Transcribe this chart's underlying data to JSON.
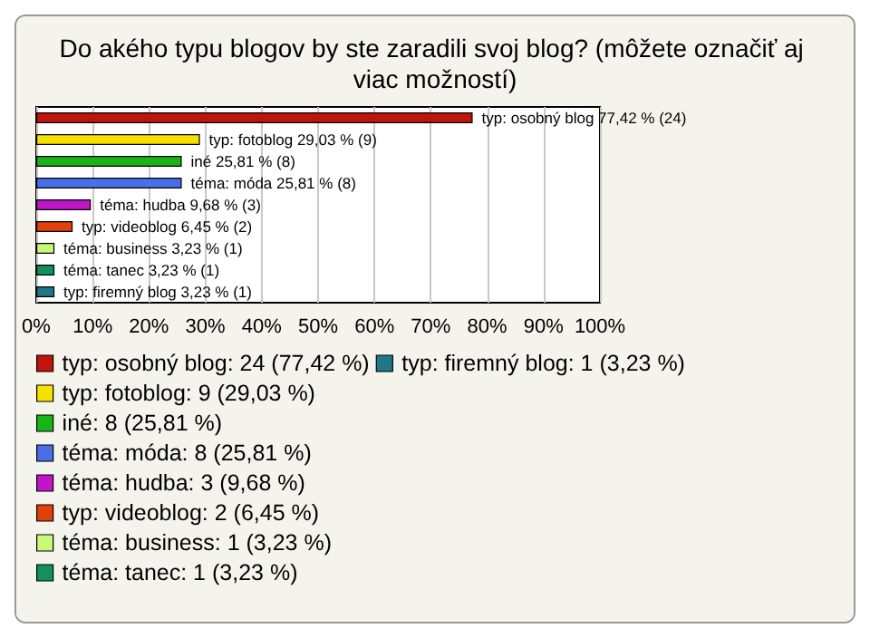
{
  "chart_data": {
    "type": "bar",
    "orientation": "horizontal",
    "stacked": true,
    "title": "Do akého typu blogov by ste zaradili svoj blog? (môžete označiť aj viac možností)",
    "categories": [
      null,
      null,
      null,
      null,
      null,
      null,
      null,
      null,
      null
    ],
    "series": [
      {
        "name": "typ: osobný blog: 24 (77,42 %)",
        "color": "#c0140c",
        "values": [
          77.42,
          null,
          null,
          null,
          null,
          null,
          null,
          null,
          null
        ],
        "value_labels": [
          "typ: osobný blog 77,42 % (24)",
          null,
          null,
          null,
          null,
          null,
          null,
          null,
          null
        ]
      },
      {
        "name": "typ: fotoblog: 9 (29,03 %)",
        "color": "#f5e000",
        "values": [
          null,
          29.03,
          null,
          null,
          null,
          null,
          null,
          null,
          null
        ],
        "value_labels": [
          null,
          "typ: fotoblog 29,03 % (9)",
          null,
          null,
          null,
          null,
          null,
          null,
          null
        ]
      },
      {
        "name": "iné: 8 (25,81 %)",
        "color": "#18b418",
        "values": [
          null,
          null,
          25.81,
          null,
          null,
          null,
          null,
          null,
          null
        ],
        "value_labels": [
          null,
          null,
          "iné 25,81 % (8)",
          null,
          null,
          null,
          null,
          null,
          null
        ]
      },
      {
        "name": "téma: móda: 8 (25,81 %)",
        "color": "#4a6ee8",
        "values": [
          null,
          null,
          null,
          25.81,
          null,
          null,
          null,
          null,
          null
        ],
        "value_labels": [
          null,
          null,
          null,
          "téma: móda 25,81 % (8)",
          null,
          null,
          null,
          null,
          null
        ]
      },
      {
        "name": "téma: hudba: 3 (9,68 %)",
        "color": "#c016c8",
        "values": [
          null,
          null,
          null,
          null,
          9.68,
          null,
          null,
          null,
          null
        ],
        "value_labels": [
          null,
          null,
          null,
          null,
          "téma: hudba 9,68 % (3)",
          null,
          null,
          null,
          null
        ]
      },
      {
        "name": "typ: videoblog: 2 (6,45 %)",
        "color": "#e0400c",
        "values": [
          null,
          null,
          null,
          null,
          null,
          6.45,
          null,
          null,
          null
        ],
        "value_labels": [
          null,
          null,
          null,
          null,
          null,
          "typ: videoblog 6,45 % (2)",
          null,
          null,
          null
        ]
      },
      {
        "name": "téma: business: 1 (3,23 %)",
        "color": "#c8f878",
        "values": [
          null,
          null,
          null,
          null,
          null,
          null,
          3.23,
          null,
          null
        ],
        "value_labels": [
          null,
          null,
          null,
          null,
          null,
          null,
          "téma: business 3,23 % (1)",
          null,
          null
        ]
      },
      {
        "name": "téma: tanec: 1 (3,23 %)",
        "color": "#14905a",
        "values": [
          null,
          null,
          null,
          null,
          null,
          null,
          null,
          3.23,
          null
        ],
        "value_labels": [
          null,
          null,
          null,
          null,
          null,
          null,
          null,
          "téma: tanec 3,23 % (1)",
          null
        ]
      },
      {
        "name": "typ: firemný blog: 1 (3,23 %)",
        "color": "#1e7888",
        "values": [
          null,
          null,
          null,
          null,
          null,
          null,
          null,
          null,
          3.23
        ],
        "value_labels": [
          null,
          null,
          null,
          null,
          null,
          null,
          null,
          null,
          "typ: firemný blog 3,23 % (1)"
        ]
      }
    ],
    "xlim": [
      0,
      100
    ],
    "xticks": [
      {
        "value": 0,
        "label": "0%"
      },
      {
        "value": 10,
        "label": "10%"
      },
      {
        "value": 20,
        "label": "20%"
      },
      {
        "value": 30,
        "label": "30%"
      },
      {
        "value": 40,
        "label": "40%"
      },
      {
        "value": 50,
        "label": "50%"
      },
      {
        "value": 60,
        "label": "60%"
      },
      {
        "value": 70,
        "label": "70%"
      },
      {
        "value": 80,
        "label": "80%"
      },
      {
        "value": 90,
        "label": "90%"
      },
      {
        "value": 100,
        "label": "100%"
      }
    ],
    "grid": "x",
    "legend": "bottom"
  }
}
